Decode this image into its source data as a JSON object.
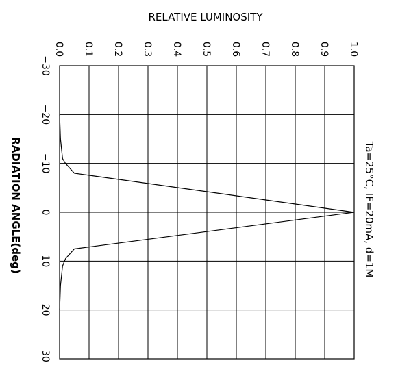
{
  "chart_data": {
    "type": "line",
    "title": "",
    "xlabel": "RELATIVE LUMINOSITY",
    "ylabel": "RADIATION ANGLE(deg)",
    "annotation": "Ta=25°C, IF=20mA, d=1M",
    "xlim": [
      0.0,
      1.0
    ],
    "ylim": [
      -30,
      30
    ],
    "x_ticks": [
      "0.0",
      "0.1",
      "0.2",
      "0.3",
      "0.4",
      "0.5",
      "0.6",
      "0.7",
      "0.8",
      "0.9",
      "1.0"
    ],
    "y_ticks": [
      "−30",
      "−20",
      "−10",
      "0",
      "10",
      "20",
      "30"
    ],
    "grid": true,
    "series": [
      {
        "points": [
          {
            "x": 0.0,
            "y": -20
          },
          {
            "x": 0.003,
            "y": -15
          },
          {
            "x": 0.01,
            "y": -11
          },
          {
            "x": 0.02,
            "y": -10
          },
          {
            "x": 0.05,
            "y": -8
          },
          {
            "x": 1.0,
            "y": 0
          },
          {
            "x": 0.05,
            "y": 7.5
          },
          {
            "x": 0.02,
            "y": 9.5
          },
          {
            "x": 0.01,
            "y": 11
          },
          {
            "x": 0.003,
            "y": 15
          },
          {
            "x": 0.0,
            "y": 20
          }
        ]
      }
    ]
  }
}
